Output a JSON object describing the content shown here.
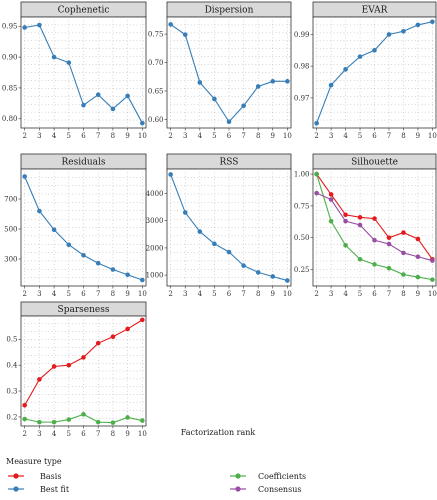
{
  "xlabel": "Factorization rank",
  "legend": {
    "title": "Measure type",
    "placement": "bottom",
    "entries": [
      {
        "name": "Basis",
        "color": "#e41a1c"
      },
      {
        "name": "Best fit",
        "color": "#377eb8"
      },
      {
        "name": "Coefficients",
        "color": "#4daf4a"
      },
      {
        "name": "Consensus",
        "color": "#984ea3"
      }
    ]
  },
  "chart_data": [
    {
      "type": "line",
      "title": "Cophenetic",
      "x": [
        2,
        3,
        4,
        5,
        6,
        7,
        8,
        9,
        10
      ],
      "ylim": [
        0.785,
        0.965
      ],
      "yticks": [
        0.8,
        0.85,
        0.9,
        0.95
      ],
      "ytick_labels": [
        "0.80",
        "0.85",
        "0.90",
        "0.95"
      ],
      "series": [
        {
          "name": "Best fit",
          "color": "#377eb8",
          "values": [
            0.948,
            0.952,
            0.9,
            0.891,
            0.822,
            0.839,
            0.816,
            0.837,
            0.793
          ]
        }
      ]
    },
    {
      "type": "line",
      "title": "Dispersion",
      "x": [
        2,
        3,
        4,
        5,
        6,
        7,
        8,
        9,
        10
      ],
      "ylim": [
        0.585,
        0.78
      ],
      "yticks": [
        0.6,
        0.65,
        0.7,
        0.75
      ],
      "ytick_labels": [
        "0.60",
        "0.65",
        "0.70",
        "0.75"
      ],
      "series": [
        {
          "name": "Best fit",
          "color": "#377eb8",
          "values": [
            0.767,
            0.749,
            0.665,
            0.636,
            0.596,
            0.624,
            0.658,
            0.667,
            0.667
          ]
        }
      ]
    },
    {
      "type": "line",
      "title": "EVAR",
      "x": [
        2,
        3,
        4,
        5,
        6,
        7,
        8,
        9,
        10
      ],
      "ylim": [
        0.9605,
        0.9955
      ],
      "yticks": [
        0.97,
        0.98,
        0.99
      ],
      "ytick_labels": [
        "0.97",
        "0.98",
        "0.99"
      ],
      "series": [
        {
          "name": "Best fit",
          "color": "#377eb8",
          "values": [
            0.962,
            0.974,
            0.979,
            0.983,
            0.985,
            0.99,
            0.991,
            0.993,
            0.994
          ]
        }
      ]
    },
    {
      "type": "line",
      "title": "Residuals",
      "x": [
        2,
        3,
        4,
        5,
        6,
        7,
        8,
        9,
        10
      ],
      "ylim": [
        120,
        900
      ],
      "yticks": [
        300,
        500,
        700
      ],
      "ytick_labels": [
        "300",
        "500",
        "700"
      ],
      "series": [
        {
          "name": "Best fit",
          "color": "#377eb8",
          "values": [
            850,
            620,
            495,
            395,
            325,
            272,
            230,
            195,
            160
          ]
        }
      ]
    },
    {
      "type": "line",
      "title": "RSS",
      "x": [
        2,
        3,
        4,
        5,
        6,
        7,
        8,
        9,
        10
      ],
      "ylim": [
        600,
        4900
      ],
      "yticks": [
        1000,
        2000,
        3000,
        4000
      ],
      "ytick_labels": [
        "1000",
        "2000",
        "3000",
        "4000"
      ],
      "series": [
        {
          "name": "Best fit",
          "color": "#377eb8",
          "values": [
            4700,
            3300,
            2600,
            2150,
            1850,
            1350,
            1100,
            950,
            800
          ]
        }
      ]
    },
    {
      "type": "line",
      "title": "Silhouette",
      "x": [
        2,
        3,
        4,
        5,
        6,
        7,
        8,
        9,
        10
      ],
      "ylim": [
        0.12,
        1.04
      ],
      "yticks": [
        0.25,
        0.5,
        0.75,
        1.0
      ],
      "ytick_labels": [
        "0.25",
        "0.50",
        "0.75",
        "1.00"
      ],
      "series": [
        {
          "name": "Basis",
          "color": "#e41a1c",
          "values": [
            1.0,
            0.84,
            0.68,
            0.66,
            0.65,
            0.5,
            0.54,
            0.49,
            0.33
          ]
        },
        {
          "name": "Coefficients",
          "color": "#4daf4a",
          "values": [
            1.0,
            0.63,
            0.44,
            0.33,
            0.29,
            0.26,
            0.21,
            0.19,
            0.17
          ]
        },
        {
          "name": "Consensus",
          "color": "#984ea3",
          "values": [
            0.85,
            0.8,
            0.63,
            0.6,
            0.48,
            0.45,
            0.38,
            0.35,
            0.32
          ]
        }
      ]
    },
    {
      "type": "line",
      "title": "Sparseness",
      "x": [
        2,
        3,
        4,
        5,
        6,
        7,
        8,
        9,
        10
      ],
      "ylim": [
        0.165,
        0.59
      ],
      "yticks": [
        0.2,
        0.3,
        0.4,
        0.5
      ],
      "ytick_labels": [
        "0.2",
        "0.3",
        "0.4",
        "0.5"
      ],
      "series": [
        {
          "name": "Basis",
          "color": "#e41a1c",
          "values": [
            0.245,
            0.345,
            0.395,
            0.4,
            0.43,
            0.485,
            0.51,
            0.54,
            0.575
          ]
        },
        {
          "name": "Coefficients",
          "color": "#4daf4a",
          "values": [
            0.192,
            0.18,
            0.18,
            0.19,
            0.21,
            0.18,
            0.178,
            0.198,
            0.186
          ]
        }
      ]
    }
  ]
}
